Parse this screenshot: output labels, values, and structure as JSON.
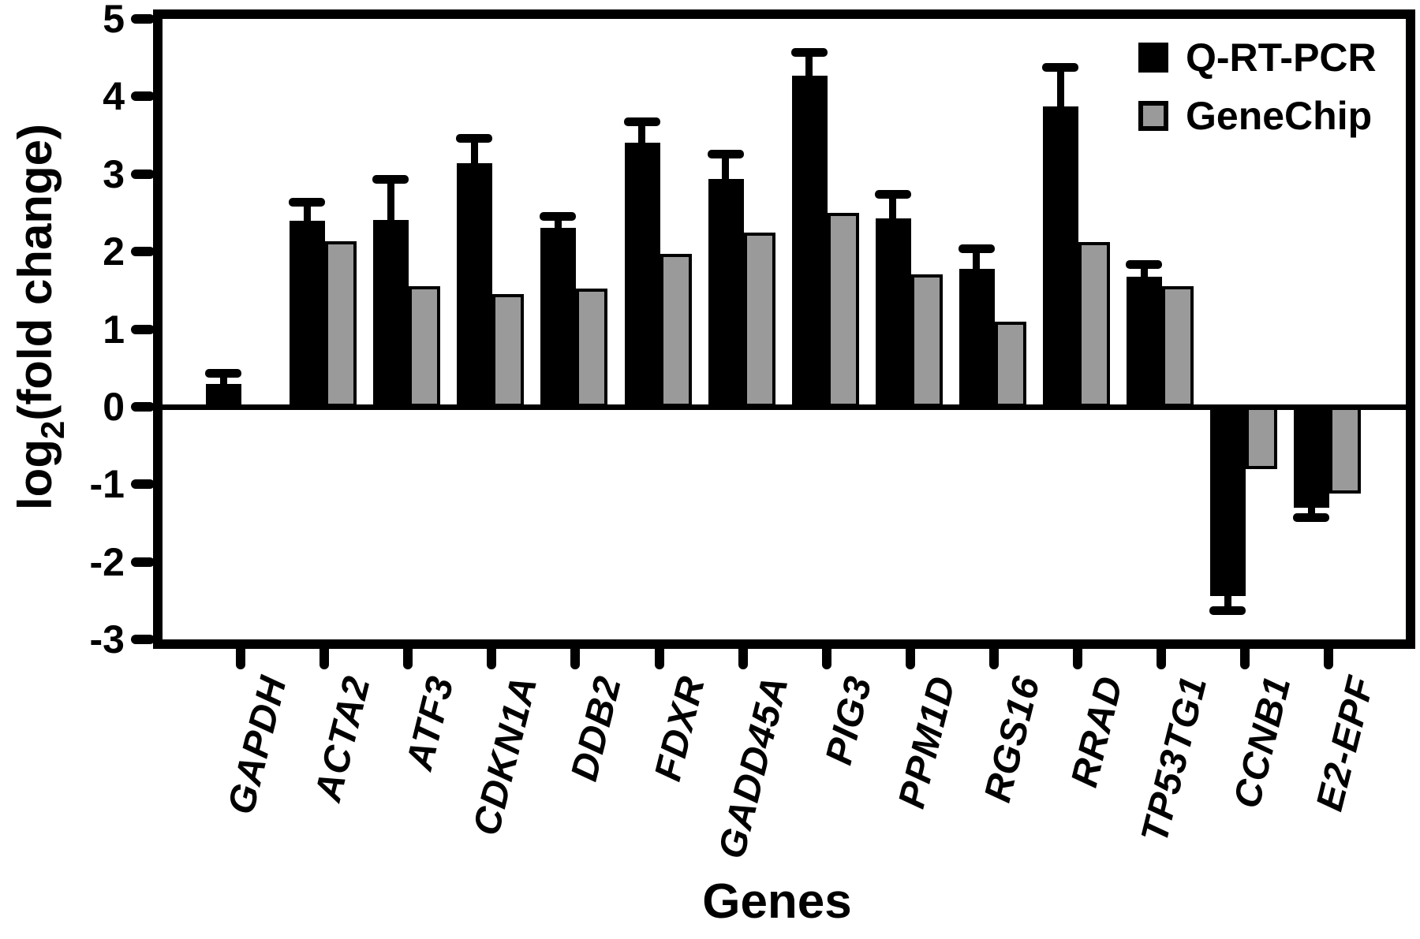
{
  "figure": {
    "background_color": "#ffffff",
    "axis_color": "#000000"
  },
  "chart_data": {
    "type": "bar",
    "title": "",
    "xlabel": "Genes",
    "ylabel": "log2(fold change)",
    "ylabel_parts": {
      "pre": "log",
      "sub": "2",
      "post": "(fold change)"
    },
    "ylim": [
      -3,
      5
    ],
    "yticks": [
      5,
      4,
      3,
      2,
      1,
      0,
      -1,
      -2,
      -3
    ],
    "grid": false,
    "legend_position": "top-right-inside",
    "categories": [
      "GAPDH",
      "ACTA2",
      "ATF3",
      "CDKN1A",
      "DDB2",
      "FDXR",
      "GADD45A",
      "PIG3",
      "PPM1D",
      "RGS16",
      "RRAD",
      "TP53TG1",
      "CCNB1",
      "E2-EPF"
    ],
    "series": [
      {
        "name": "Q-RT-PCR",
        "color": "#000000",
        "values": [
          0.29,
          2.4,
          2.41,
          3.14,
          2.31,
          3.4,
          2.94,
          4.27,
          2.43,
          1.78,
          3.87,
          1.68,
          -2.44,
          -1.3
        ],
        "errors": [
          0.14,
          0.24,
          0.52,
          0.32,
          0.14,
          0.27,
          0.32,
          0.3,
          0.31,
          0.26,
          0.51,
          0.15,
          0.19,
          0.13
        ]
      },
      {
        "name": "GeneChip",
        "color": "#9a9a9a",
        "values": [
          0.03,
          2.13,
          1.55,
          1.45,
          1.52,
          1.97,
          2.25,
          2.5,
          1.71,
          1.1,
          2.12,
          1.55,
          -0.8,
          -1.12
        ],
        "errors": null
      }
    ]
  }
}
